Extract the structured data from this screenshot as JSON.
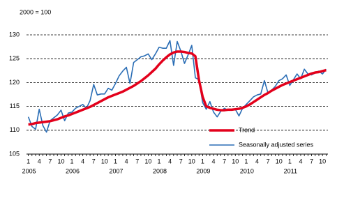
{
  "chart_data": {
    "type": "line",
    "unit_note": "2000 = 100",
    "categories": [
      "1",
      null,
      null,
      "4",
      null,
      null,
      "7",
      null,
      null,
      "10",
      null,
      null,
      "1",
      null,
      null,
      "4",
      null,
      null,
      "7",
      null,
      null,
      "10",
      null,
      null,
      "1",
      null,
      null,
      "4",
      null,
      null,
      "7",
      null,
      null,
      "10",
      null,
      null,
      "1",
      null,
      null,
      "4",
      null,
      null,
      "7",
      null,
      null,
      "10",
      null,
      null,
      "1",
      null,
      null,
      "4",
      null,
      null,
      "7",
      null,
      null,
      "10",
      null,
      null,
      "1",
      null,
      null,
      "4",
      null,
      null,
      "7",
      null,
      null,
      "10",
      null,
      null,
      "1",
      null,
      null,
      "4",
      null,
      null,
      "7",
      null,
      null,
      "10",
      null
    ],
    "years": [
      "2005",
      "2006",
      "2007",
      "2008",
      "2009",
      "2010",
      "2011"
    ],
    "series": [
      {
        "name": "Trend",
        "color": "#e3001b",
        "width": 3.5,
        "values": [
          111.2,
          111.3,
          111.5,
          111.6,
          111.7,
          111.8,
          111.9,
          112.1,
          112.3,
          112.6,
          112.9,
          113.1,
          113.4,
          113.7,
          114.0,
          114.3,
          114.6,
          114.9,
          115.3,
          115.7,
          116.1,
          116.5,
          116.9,
          117.2,
          117.5,
          117.8,
          118.1,
          118.5,
          118.9,
          119.3,
          119.8,
          120.3,
          120.9,
          121.5,
          122.2,
          122.9,
          123.8,
          124.6,
          125.3,
          125.9,
          126.3,
          126.5,
          126.5,
          126.4,
          126.2,
          126.1,
          125.5,
          120.5,
          117.0,
          115.0,
          114.7,
          114.5,
          114.3,
          114.2,
          114.2,
          114.3,
          114.3,
          114.4,
          114.5,
          114.7,
          115.0,
          115.4,
          115.9,
          116.4,
          116.9,
          117.4,
          117.8,
          118.3,
          118.7,
          119.1,
          119.5,
          119.8,
          120.1,
          120.4,
          120.7,
          121.0,
          121.3,
          121.6,
          121.9,
          122.1,
          122.2,
          122.4,
          122.6
        ]
      },
      {
        "name": "Seasonally adjusted series",
        "color": "#2a6db5",
        "width": 1.6,
        "values": [
          112.8,
          110.8,
          110.2,
          114.4,
          111.0,
          109.6,
          112.0,
          112.6,
          113.2,
          114.2,
          112.0,
          113.6,
          113.8,
          114.6,
          115.0,
          115.4,
          114.6,
          116.2,
          119.6,
          117.4,
          117.6,
          117.6,
          118.8,
          118.4,
          119.8,
          121.4,
          122.4,
          123.2,
          119.8,
          124.2,
          124.8,
          125.4,
          125.6,
          126.0,
          124.8,
          126.0,
          127.4,
          127.2,
          127.2,
          128.8,
          123.6,
          128.6,
          126.6,
          124.0,
          125.8,
          127.8,
          121.0,
          120.6,
          115.8,
          114.4,
          116.0,
          113.8,
          112.8,
          114.0,
          114.6,
          114.2,
          114.4,
          114.4,
          113.0,
          114.6,
          115.4,
          116.2,
          117.0,
          117.4,
          117.6,
          120.4,
          117.8,
          118.4,
          119.2,
          120.4,
          120.8,
          121.6,
          119.4,
          120.6,
          121.8,
          120.8,
          122.8,
          121.8,
          121.6,
          122.0,
          122.4,
          121.8,
          122.8
        ]
      }
    ],
    "ylim": [
      105,
      130
    ],
    "yticks": [
      105,
      110,
      115,
      120,
      125,
      130
    ],
    "grid": true,
    "legend": "lower right"
  }
}
